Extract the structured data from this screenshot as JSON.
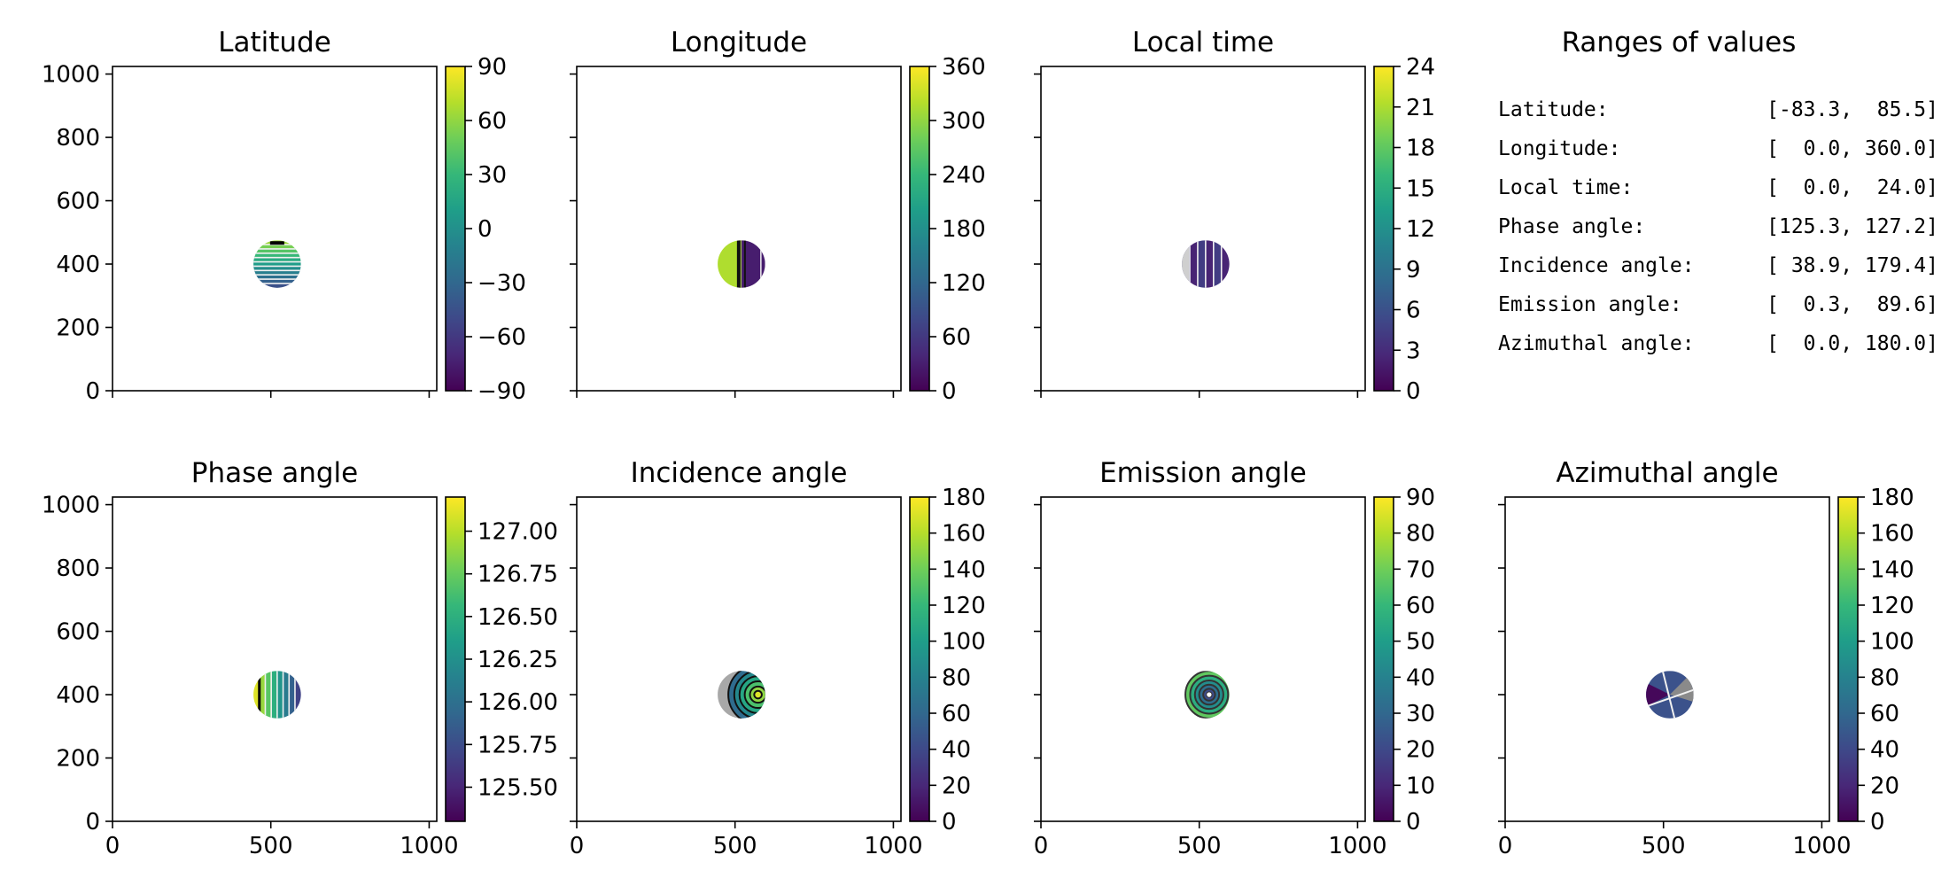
{
  "chart_data": [
    {
      "type": "heatmap",
      "title": "Latitude",
      "xlim": [
        0,
        1024
      ],
      "ylim": [
        0,
        1024
      ],
      "xticks": [
        0,
        500,
        1000
      ],
      "yticks": [
        0,
        200,
        400,
        600,
        800,
        1000
      ],
      "show_xticklabels": false,
      "show_yticklabels": true,
      "disk": {
        "center": [
          520,
          400
        ],
        "radius": 75
      },
      "pattern": "horizontal-bands",
      "contour_color": "#f0f0f0",
      "colorbar": {
        "min": -90,
        "max": 90,
        "ticks": [
          -90,
          -60,
          -30,
          0,
          30,
          60,
          90
        ],
        "tick_labels": [
          "−90",
          "−60",
          "−30",
          "0",
          "30",
          "60",
          "90"
        ],
        "colormap": "viridis"
      }
    },
    {
      "type": "heatmap",
      "title": "Longitude",
      "xlim": [
        0,
        1024
      ],
      "ylim": [
        0,
        1024
      ],
      "xticks": [
        0,
        500,
        1000
      ],
      "yticks": [
        0,
        200,
        400,
        600,
        800,
        1000
      ],
      "show_xticklabels": false,
      "show_yticklabels": false,
      "disk": {
        "center": [
          520,
          400
        ],
        "radius": 75
      },
      "pattern": "vertical-halves",
      "contour_color": "#111111",
      "colorbar": {
        "min": 0,
        "max": 360,
        "ticks": [
          0,
          60,
          120,
          180,
          240,
          300,
          360
        ],
        "tick_labels": [
          "0",
          "60",
          "120",
          "180",
          "240",
          "300",
          "360"
        ],
        "colormap": "viridis"
      }
    },
    {
      "type": "heatmap",
      "title": "Local time",
      "xlim": [
        0,
        1024
      ],
      "ylim": [
        0,
        1024
      ],
      "xticks": [
        0,
        500,
        1000
      ],
      "yticks": [
        0,
        200,
        400,
        600,
        800,
        1000
      ],
      "show_xticklabels": false,
      "show_yticklabels": false,
      "disk": {
        "center": [
          520,
          400
        ],
        "radius": 75
      },
      "pattern": "vertical-stripes",
      "contour_color": "#f0f0f0",
      "colorbar": {
        "min": 0,
        "max": 24,
        "ticks": [
          0,
          3,
          6,
          9,
          12,
          15,
          18,
          21,
          24
        ],
        "tick_labels": [
          "0",
          "3",
          "6",
          "9",
          "12",
          "15",
          "18",
          "21",
          "24"
        ],
        "colormap": "viridis"
      }
    },
    {
      "type": "heatmap",
      "title": "Phase angle",
      "xlim": [
        0,
        1024
      ],
      "ylim": [
        0,
        1024
      ],
      "xticks": [
        0,
        500,
        1000
      ],
      "yticks": [
        0,
        200,
        400,
        600,
        800,
        1000
      ],
      "show_xticklabels": true,
      "show_yticklabels": true,
      "disk": {
        "center": [
          520,
          400
        ],
        "radius": 75
      },
      "pattern": "vertical-gradient-stripes",
      "contour_color": "#f0f0f0",
      "colorbar": {
        "min": 125.3,
        "max": 127.2,
        "ticks": [
          125.5,
          125.75,
          126.0,
          126.25,
          126.5,
          126.75,
          127.0
        ],
        "tick_labels": [
          "125.50",
          "125.75",
          "126.00",
          "126.25",
          "126.50",
          "126.75",
          "127.00"
        ],
        "colormap": "viridis"
      }
    },
    {
      "type": "heatmap",
      "title": "Incidence angle",
      "xlim": [
        0,
        1024
      ],
      "ylim": [
        0,
        1024
      ],
      "xticks": [
        0,
        500,
        1000
      ],
      "yticks": [
        0,
        200,
        400,
        600,
        800,
        1000
      ],
      "show_xticklabels": true,
      "show_yticklabels": false,
      "disk": {
        "center": [
          520,
          400
        ],
        "radius": 75
      },
      "pattern": "concentric-right",
      "contour_color": "#111111",
      "colorbar": {
        "min": 0,
        "max": 180,
        "ticks": [
          0,
          20,
          40,
          60,
          80,
          100,
          120,
          140,
          160,
          180
        ],
        "tick_labels": [
          "0",
          "20",
          "40",
          "60",
          "80",
          "100",
          "120",
          "140",
          "160",
          "180"
        ],
        "colormap": "viridis"
      }
    },
    {
      "type": "heatmap",
      "title": "Emission angle",
      "xlim": [
        0,
        1024
      ],
      "ylim": [
        0,
        1024
      ],
      "xticks": [
        0,
        500,
        1000
      ],
      "yticks": [
        0,
        200,
        400,
        600,
        800,
        1000
      ],
      "show_xticklabels": true,
      "show_yticklabels": false,
      "disk": {
        "center": [
          520,
          400
        ],
        "radius": 75
      },
      "pattern": "concentric-center",
      "contour_color": "#333333",
      "colorbar": {
        "min": 0,
        "max": 90,
        "ticks": [
          0,
          10,
          20,
          30,
          40,
          50,
          60,
          70,
          80,
          90
        ],
        "tick_labels": [
          "0",
          "10",
          "20",
          "30",
          "40",
          "50",
          "60",
          "70",
          "80",
          "90"
        ],
        "colormap": "viridis"
      }
    },
    {
      "type": "heatmap",
      "title": "Azimuthal angle",
      "xlim": [
        0,
        1024
      ],
      "ylim": [
        0,
        1024
      ],
      "xticks": [
        0,
        500,
        1000
      ],
      "yticks": [
        0,
        200,
        400,
        600,
        800,
        1000
      ],
      "show_xticklabels": true,
      "show_yticklabels": false,
      "disk": {
        "center": [
          520,
          400
        ],
        "radius": 75
      },
      "pattern": "azimuthal-sectors",
      "contour_color": "#f0f0f0",
      "colorbar": {
        "min": 0,
        "max": 180,
        "ticks": [
          0,
          20,
          40,
          60,
          80,
          100,
          120,
          140,
          160,
          180
        ],
        "tick_labels": [
          "0",
          "20",
          "40",
          "60",
          "80",
          "100",
          "120",
          "140",
          "160",
          "180"
        ],
        "colormap": "viridis"
      }
    },
    {
      "type": "table",
      "title": "Ranges of values",
      "rows": [
        {
          "label": "Latitude:",
          "range": "[-83.3,  85.5]"
        },
        {
          "label": "Longitude:",
          "range": "[  0.0, 360.0]"
        },
        {
          "label": "Local time:",
          "range": "[  0.0,  24.0]"
        },
        {
          "label": "Phase angle:",
          "range": "[125.3, 127.2]"
        },
        {
          "label": "Incidence angle:",
          "range": "[ 38.9, 179.4]"
        },
        {
          "label": "Emission angle:",
          "range": "[  0.3,  89.6]"
        },
        {
          "label": "Azimuthal angle:",
          "range": "[  0.0, 180.0]"
        }
      ]
    }
  ]
}
